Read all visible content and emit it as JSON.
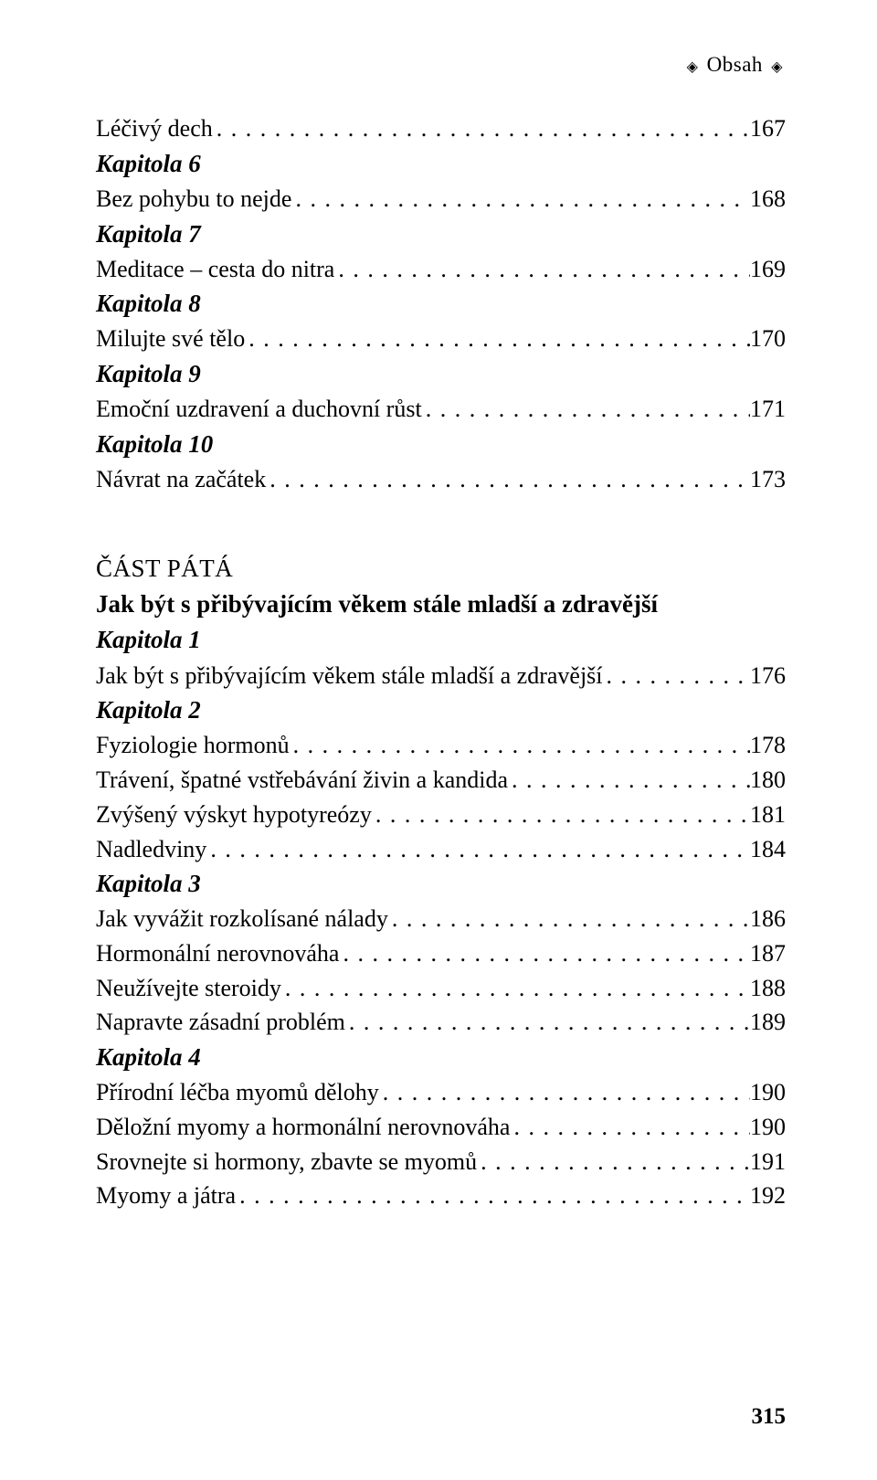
{
  "header": {
    "label": "Obsah"
  },
  "entries": [
    {
      "type": "line",
      "label": "Léčivý dech",
      "page": "167"
    },
    {
      "type": "chapter",
      "label": "Kapitola 6"
    },
    {
      "type": "line",
      "label": "Bez pohybu to nejde",
      "page": "168"
    },
    {
      "type": "chapter",
      "label": "Kapitola 7"
    },
    {
      "type": "line",
      "label": "Meditace – cesta do nitra",
      "page": "169"
    },
    {
      "type": "chapter",
      "label": "Kapitola 8"
    },
    {
      "type": "line",
      "label": "Milujte své tělo",
      "page": "170"
    },
    {
      "type": "chapter",
      "label": "Kapitola 9"
    },
    {
      "type": "line",
      "label": "Emoční uzdravení a duchovní růst",
      "page": "171"
    },
    {
      "type": "chapter",
      "label": "Kapitola 10"
    },
    {
      "type": "line",
      "label": "Návrat na začátek",
      "page": "173"
    },
    {
      "type": "gap"
    },
    {
      "type": "part",
      "label": "ČÁST PÁTÁ"
    },
    {
      "type": "partsubtitle",
      "label": "Jak být s přibývajícím věkem stále mladší a zdravější"
    },
    {
      "type": "chapter",
      "label": "Kapitola 1"
    },
    {
      "type": "line",
      "label": "Jak být s přibývajícím věkem stále mladší a zdravější",
      "page": "176"
    },
    {
      "type": "chapter",
      "label": "Kapitola 2"
    },
    {
      "type": "line",
      "label": "Fyziologie hormonů",
      "page": "178"
    },
    {
      "type": "line",
      "label": "Trávení, špatné vstřebávání živin a kandida",
      "page": "180"
    },
    {
      "type": "line",
      "label": "Zvýšený výskyt hypotyreózy",
      "page": "181"
    },
    {
      "type": "line",
      "label": "Nadledviny",
      "page": "184"
    },
    {
      "type": "chapter",
      "label": "Kapitola 3"
    },
    {
      "type": "line",
      "label": "Jak vyvážit rozkolísané nálady",
      "page": "186"
    },
    {
      "type": "line",
      "label": "Hormonální nerovnováha",
      "page": "187"
    },
    {
      "type": "line",
      "label": "Neužívejte steroidy",
      "page": "188"
    },
    {
      "type": "line",
      "label": "Napravte zásadní problém",
      "page": "189"
    },
    {
      "type": "chapter",
      "label": "Kapitola 4"
    },
    {
      "type": "line",
      "label": "Přírodní léčba myomů dělohy",
      "page": "190"
    },
    {
      "type": "line",
      "label": "Děložní myomy a hormonální nerovnováha",
      "page": "190"
    },
    {
      "type": "line",
      "label": "Srovnejte si hormony, zbavte se myomů",
      "page": "191"
    },
    {
      "type": "line",
      "label": "Myomy a játra",
      "page": "192"
    }
  ],
  "pageNumber": "315",
  "colors": {
    "background": "#ffffff",
    "text": "#000000"
  }
}
